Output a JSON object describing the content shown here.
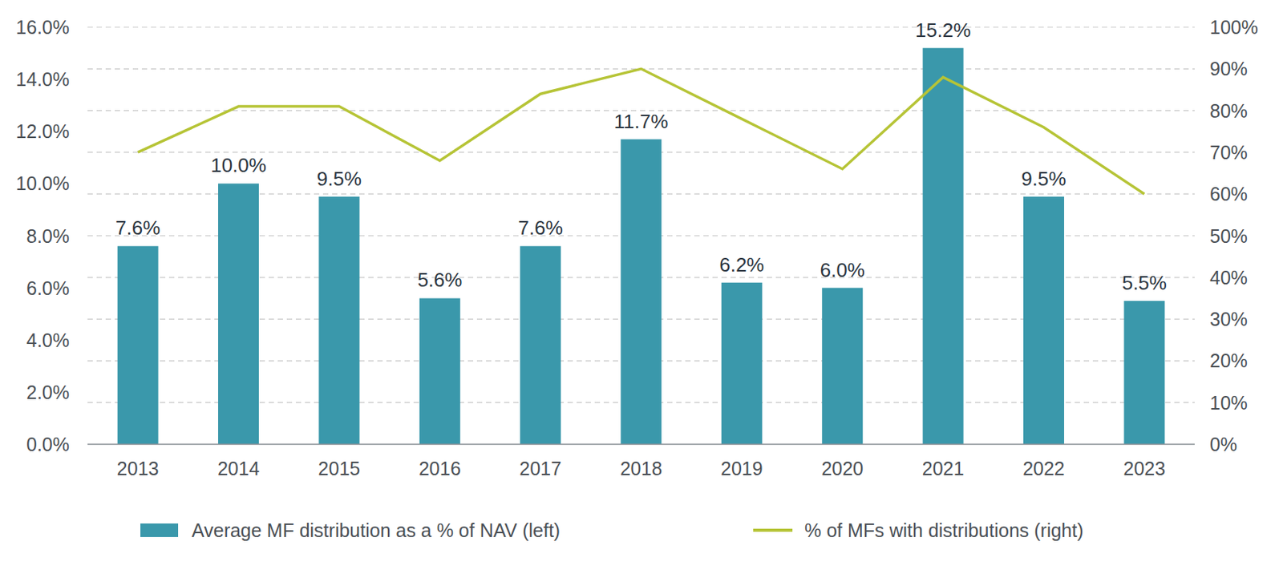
{
  "chart_data": {
    "type": "bar",
    "categories": [
      "2013",
      "2014",
      "2015",
      "2016",
      "2017",
      "2018",
      "2019",
      "2020",
      "2021",
      "2022",
      "2023"
    ],
    "series": [
      {
        "name": "Average MF distribution as a % of NAV (left)",
        "type": "bar",
        "color": "#3a98ab",
        "values": [
          7.6,
          10.0,
          9.5,
          5.6,
          7.6,
          11.7,
          6.2,
          6.0,
          15.2,
          9.5,
          5.5
        ],
        "value_labels": [
          "7.6%",
          "10.0%",
          "9.5%",
          "5.6%",
          "7.6%",
          "11.7%",
          "6.2%",
          "6.0%",
          "15.2%",
          "9.5%",
          "5.5%"
        ]
      },
      {
        "name": "% of MFs with distributions (right)",
        "type": "line",
        "axis": "y2",
        "color": "#b6c436",
        "values": [
          70,
          81,
          81,
          68,
          84,
          90,
          78,
          66,
          88,
          76,
          60
        ]
      }
    ],
    "ylim": [
      0,
      16
    ],
    "yticks": [
      {
        "value": 0,
        "label": "0.0%"
      },
      {
        "value": 2,
        "label": "2.0%"
      },
      {
        "value": 4,
        "label": "4.0%"
      },
      {
        "value": 6,
        "label": "6.0%"
      },
      {
        "value": 8,
        "label": "8.0%"
      },
      {
        "value": 10,
        "label": "10.0%"
      },
      {
        "value": 12,
        "label": "12.0%"
      },
      {
        "value": 14,
        "label": "14.0%"
      },
      {
        "value": 16,
        "label": "16.0%"
      }
    ],
    "y2lim": [
      0,
      100
    ],
    "y2ticks": [
      {
        "value": 0,
        "label": "0%"
      },
      {
        "value": 10,
        "label": "10%"
      },
      {
        "value": 20,
        "label": "20%"
      },
      {
        "value": 30,
        "label": "30%"
      },
      {
        "value": 40,
        "label": "40%"
      },
      {
        "value": 50,
        "label": "50%"
      },
      {
        "value": 60,
        "label": "60%"
      },
      {
        "value": 70,
        "label": "70%"
      },
      {
        "value": 80,
        "label": "80%"
      },
      {
        "value": 90,
        "label": "90%"
      },
      {
        "value": 100,
        "label": "100%"
      }
    ],
    "grid": true,
    "legend": "bottom",
    "data_labels": true
  }
}
